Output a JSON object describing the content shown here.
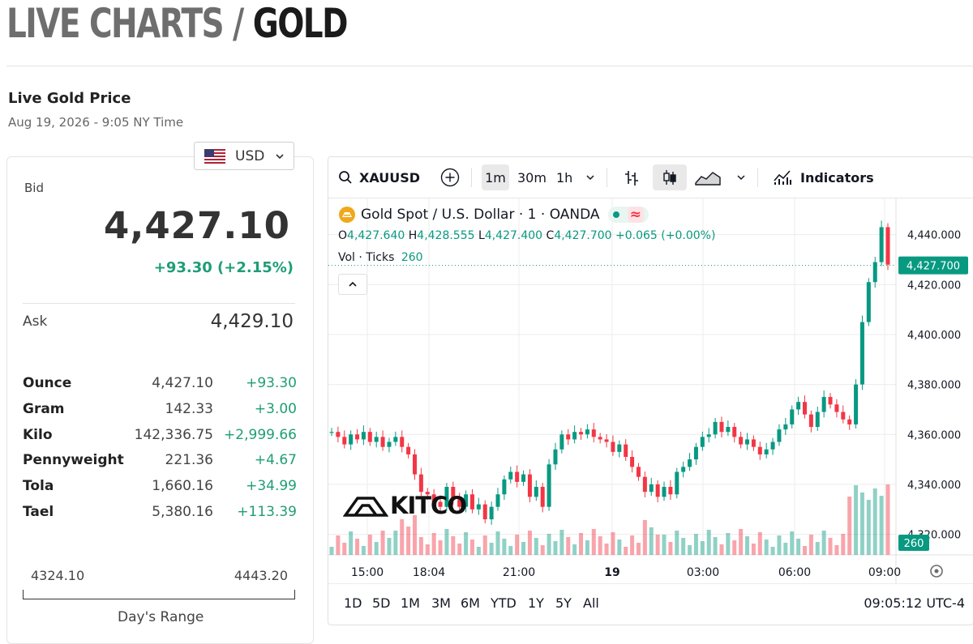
{
  "header": {
    "crumb": "LIVE CHARTS / ",
    "current": "GOLD"
  },
  "live": {
    "title": "Live Gold Price",
    "time": "Aug 19, 2026 - 9:05 NY Time"
  },
  "currency": {
    "selected": "USD",
    "flag_icon": "us-flag-icon"
  },
  "bid": {
    "label": "Bid",
    "value": "4,427.10",
    "change": "+93.30 (+2.15%)"
  },
  "ask": {
    "label": "Ask",
    "value": "4,429.10"
  },
  "units": [
    {
      "name": "Ounce",
      "price": "4,427.10",
      "change": "+93.30"
    },
    {
      "name": "Gram",
      "price": "142.33",
      "change": "+3.00"
    },
    {
      "name": "Kilo",
      "price": "142,336.75",
      "change": "+2,999.66"
    },
    {
      "name": "Pennyweight",
      "price": "221.36",
      "change": "+4.67"
    },
    {
      "name": "Tola",
      "price": "1,660.16",
      "change": "+34.99"
    },
    {
      "name": "Tael",
      "price": "5,380.16",
      "change": "+113.39"
    }
  ],
  "day_range": {
    "low": "4324.10",
    "high": "4443.20",
    "label": "Day's Range"
  },
  "widget": {
    "symbol": "XAUUSD",
    "intervals": [
      "1m",
      "30m",
      "1h"
    ],
    "selected_interval": "1m",
    "indicators_label": "Indicators",
    "legend_title": "Gold Spot / U.S. Dollar · 1 · OANDA",
    "ohlc": {
      "o_label": "O",
      "o": "4,427.640",
      "h_label": "H",
      "h": "4,428.555",
      "l_label": "L",
      "l": "4,427.400",
      "c_label": "C",
      "c": "4,427.700",
      "change": "+0.065 (+0.00%)"
    },
    "volume_label": "Vol · Ticks",
    "volume_value": "260",
    "watermark": "KITCO",
    "ranges": [
      "1D",
      "5D",
      "1M",
      "3M",
      "6M",
      "YTD",
      "1Y",
      "5Y",
      "All"
    ],
    "clock": "09:05:12 UTC-4",
    "colors": {
      "up": "#089981",
      "down": "#f23645",
      "accent": "#1f9d76"
    }
  },
  "chart_data": {
    "type": "candlestick",
    "x_tick_labels": [
      "15:00",
      "18:04",
      "21:00",
      "19",
      "03:00",
      "06:00",
      "09:00"
    ],
    "y_tick_labels": [
      "4,440.000",
      "4,420.000",
      "4,400.000",
      "4,380.000",
      "4,360.000",
      "4,340.000",
      "4,320.000"
    ],
    "ylim": [
      4315,
      4448
    ],
    "last_price_label": "4,427.700",
    "volume_last_label": "260",
    "series": [
      {
        "values": [
          4361,
          4359,
          4356,
          4360,
          4358,
          4361,
          4357,
          4359,
          4355,
          4357,
          4359,
          4355,
          4352,
          4344,
          4337,
          4336,
          4333,
          4331,
          4339,
          4334,
          4331,
          4336,
          4330,
          4332,
          4326,
          4331,
          4336,
          4342,
          4345,
          4341,
          4344,
          4335,
          4339,
          4331,
          4348,
          4354,
          4360,
          4358,
          4361,
          4360,
          4362,
          4359,
          4358,
          4357,
          4353,
          4356,
          4351,
          4347,
          4343,
          4337,
          4340,
          4335,
          4339,
          4336,
          4345,
          4347,
          4350,
          4355,
          4359,
          4360,
          4365,
          4361,
          4363,
          4359,
          4356,
          4358,
          4355,
          4352,
          4354,
          4357,
          4362,
          4364,
          4370,
          4373,
          4368,
          4363,
          4369,
          4375,
          4372,
          4369,
          4366,
          4364,
          4380,
          4405,
          4421,
          4429,
          4443,
          4428
        ]
      }
    ]
  }
}
